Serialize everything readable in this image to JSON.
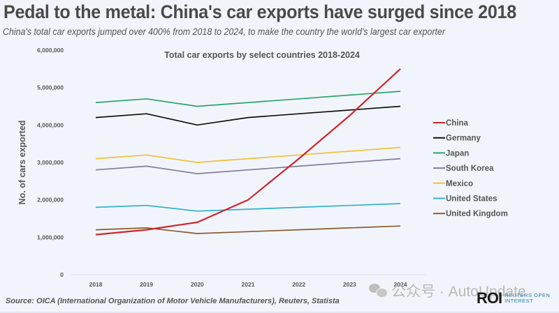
{
  "header": {
    "title": "Pedal to the metal: China's car exports have surged since 2018",
    "subtitle": "China's total car exports jumped over 400% from 2018 to 2024, to make the country the world's largest car exporter"
  },
  "footer": {
    "source": "Source:  OICA (International Organization of Motor Vehicle Manufacturers), Reuters, Statista",
    "watermark": "公众号 · AutoUpdate",
    "watermark_icon": "wechat-icon",
    "logo_mark": "ROI",
    "logo_text_line1": "REUTERS OPEN",
    "logo_text_line2": "INTEREST"
  },
  "chart_data": {
    "type": "line",
    "title": "Total car exports by select countries 2018-2024",
    "xlabel": "",
    "ylabel": "No. of cars exported",
    "x": [
      "2018",
      "2019",
      "2020",
      "2021",
      "2022",
      "2023",
      "2024"
    ],
    "ylim": [
      0,
      6000000
    ],
    "yticks": [
      0,
      1000000,
      2000000,
      3000000,
      4000000,
      5000000,
      6000000
    ],
    "ytick_labels": [
      "0",
      "1,000,000",
      "2,000,000",
      "3,000,000",
      "4,000,000",
      "5,000,000",
      "6,000,000"
    ],
    "grid": false,
    "legend_position": "right",
    "series": [
      {
        "name": "China",
        "color": "#d0262b",
        "values": [
          1070000,
          1200000,
          1400000,
          2000000,
          3100000,
          4250000,
          5500000
        ]
      },
      {
        "name": "Germany",
        "color": "#111111",
        "values": [
          4200000,
          4300000,
          4000000,
          4200000,
          4300000,
          4400000,
          4500000
        ]
      },
      {
        "name": "Japan",
        "color": "#2aa46a",
        "values": [
          4600000,
          4700000,
          4500000,
          4600000,
          4700000,
          4800000,
          4900000
        ]
      },
      {
        "name": "South Korea",
        "color": "#857a9c",
        "values": [
          2800000,
          2900000,
          2700000,
          2800000,
          2900000,
          3000000,
          3100000
        ]
      },
      {
        "name": "Mexico",
        "color": "#f2c037",
        "values": [
          3100000,
          3200000,
          3000000,
          3100000,
          3200000,
          3300000,
          3400000
        ]
      },
      {
        "name": "United States",
        "color": "#2fb2cc",
        "values": [
          1800000,
          1850000,
          1700000,
          1750000,
          1800000,
          1850000,
          1900000
        ]
      },
      {
        "name": "United Kingdom",
        "color": "#8a5a2e",
        "values": [
          1200000,
          1250000,
          1100000,
          1150000,
          1200000,
          1250000,
          1300000
        ]
      }
    ]
  }
}
